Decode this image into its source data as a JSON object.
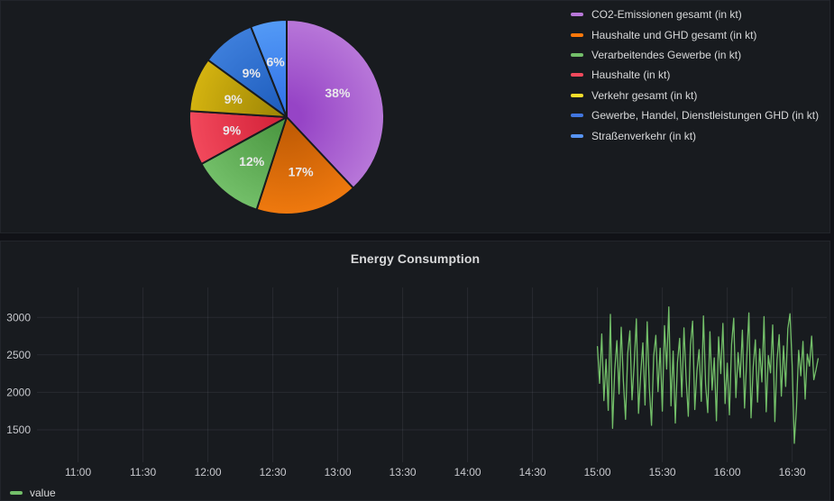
{
  "theme": {
    "page_bg": "#111217",
    "panel_bg": "#181b1f",
    "panel_border": "#22252b",
    "text_primary": "#d8d9da",
    "axis_text": "#c8c9ce",
    "grid_color": "rgba(204,204,220,0.09)",
    "pie_label_color": "#e9e9eb"
  },
  "chart_data": [
    {
      "type": "pie",
      "title": "",
      "legend_position": "right",
      "labels": [
        "CO2-Emissionen gesamt (in kt)",
        "Haushalte und GHD gesamt (in kt)",
        "Verarbeitendes Gewerbe (in kt)",
        "Haushalte (in kt)",
        "Verkehr gesamt (in kt)",
        "Gewerbe, Handel, Dienstleistungen GHD (in kt)",
        "Straßenverkehr (in kt)"
      ],
      "values": [
        38,
        17,
        12,
        9,
        9,
        9,
        6
      ],
      "value_unit": "%",
      "slice_labels": [
        "38%",
        "17%",
        "12%",
        "9%",
        "9%",
        "9%",
        "6%"
      ],
      "legend_colors": [
        "#b877d9",
        "#ff780a",
        "#73bf69",
        "#f2495c",
        "#fade2a",
        "#4176e0",
        "#5794f2"
      ],
      "slice_colors_inner": [
        "#9644c6",
        "#c35d05",
        "#4e9a44",
        "#d6253c",
        "#a38a06",
        "#2160c0",
        "#3576e8"
      ],
      "slice_colors_outer": [
        "#b877d9",
        "#ef790e",
        "#73bf69",
        "#f2495c",
        "#d4b310",
        "#3d7edb",
        "#539af6"
      ]
    },
    {
      "type": "line",
      "title": "Energy Consumption",
      "legend_position": "bottom",
      "x_ticks": [
        {
          "label": "11:00",
          "minute": 660
        },
        {
          "label": "11:30",
          "minute": 690
        },
        {
          "label": "12:00",
          "minute": 720
        },
        {
          "label": "12:30",
          "minute": 750
        },
        {
          "label": "13:00",
          "minute": 780
        },
        {
          "label": "13:30",
          "minute": 810
        },
        {
          "label": "14:00",
          "minute": 840
        },
        {
          "label": "14:30",
          "minute": 870
        },
        {
          "label": "15:00",
          "minute": 900
        },
        {
          "label": "15:30",
          "minute": 930
        },
        {
          "label": "16:00",
          "minute": 960
        },
        {
          "label": "16:30",
          "minute": 990
        }
      ],
      "y_ticks": [
        1500,
        2000,
        2500,
        3000
      ],
      "x_range_minutes": [
        641,
        1006
      ],
      "y_range": [
        1115,
        3400
      ],
      "grid": true,
      "series": [
        {
          "name": "value",
          "color": "#73bf69",
          "x_start_minute": 900,
          "x_step_minute": 1,
          "values": [
            2610,
            2120,
            2780,
            1890,
            2440,
            1760,
            3040,
            1520,
            2300,
            2690,
            1980,
            2870,
            2150,
            1640,
            2520,
            2820,
            1900,
            2380,
            2980,
            1720,
            2240,
            2660,
            1830,
            2940,
            2060,
            1560,
            2480,
            2760,
            2010,
            2590,
            1750,
            2890,
            2310,
            3140,
            1820,
            2550,
            1590,
            2400,
            2720,
            1940,
            2860,
            2180,
            1680,
            2630,
            2950,
            1770,
            2290,
            2570,
            1880,
            3020,
            2110,
            1730,
            2810,
            2030,
            2460,
            1620,
            2740,
            2250,
            2920,
            1850,
            2390,
            1700,
            2640,
            2990,
            1930,
            2530,
            2200,
            2830,
            1790,
            2450,
            3060,
            1660,
            2340,
            2700,
            1870,
            2580,
            2140,
            3010,
            1740,
            2490,
            2260,
            2900,
            1610,
            2430,
            2770,
            1950,
            2620,
            2080,
            2850,
            3050,
            2360,
            1320,
            1800,
            2560,
            2220,
            2680,
            1910,
            2510,
            2350,
            2750,
            2170,
            2300,
            2450
          ]
        }
      ]
    }
  ]
}
